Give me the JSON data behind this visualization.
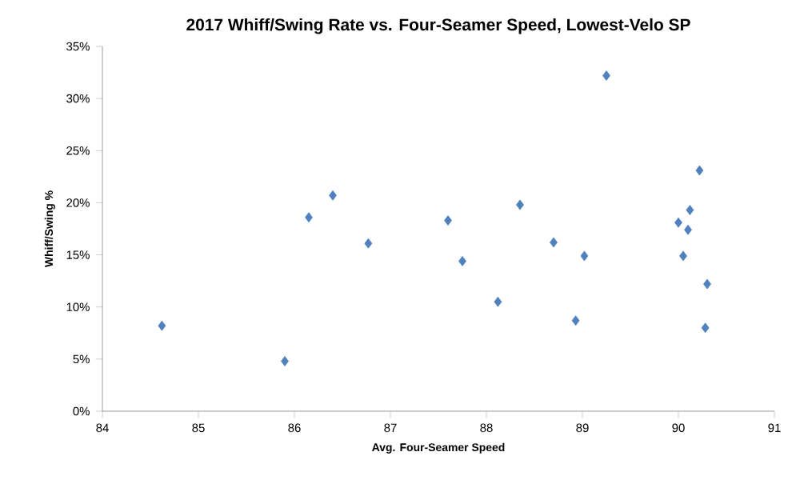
{
  "chart_data": {
    "type": "scatter",
    "title": "2017 Whiff/Swing Rate vs. Four-Seamer Speed, Lowest-Velo SP",
    "xlabel": "Avg. Four-Seamer Speed",
    "ylabel": "Whiff/Swing %",
    "x": [
      84.62,
      85.9,
      86.15,
      86.4,
      86.77,
      87.6,
      87.75,
      88.12,
      88.35,
      88.7,
      89.02,
      88.93,
      89.25,
      90.0,
      90.05,
      90.1,
      90.12,
      90.22,
      90.3,
      90.28
    ],
    "values": [
      8.2,
      4.8,
      18.6,
      20.7,
      16.1,
      18.3,
      14.4,
      10.5,
      19.8,
      16.2,
      14.9,
      8.7,
      32.2,
      18.1,
      14.9,
      17.4,
      19.3,
      23.1,
      12.2,
      8.0
    ],
    "color": "#4f81bd",
    "marker": "diamond",
    "xlim": [
      84,
      91
    ],
    "xticks": [
      84,
      85,
      86,
      87,
      88,
      89,
      90,
      91
    ],
    "ylim": [
      0,
      35
    ],
    "yticks": [
      {
        "value": 0,
        "label": "0%"
      },
      {
        "value": 5,
        "label": "5%"
      },
      {
        "value": 10,
        "label": "10%"
      },
      {
        "value": 15,
        "label": "15%"
      },
      {
        "value": 20,
        "label": "20%"
      },
      {
        "value": 25,
        "label": "25%"
      },
      {
        "value": 30,
        "label": "30%"
      },
      {
        "value": 35,
        "label": "35%"
      }
    ]
  }
}
